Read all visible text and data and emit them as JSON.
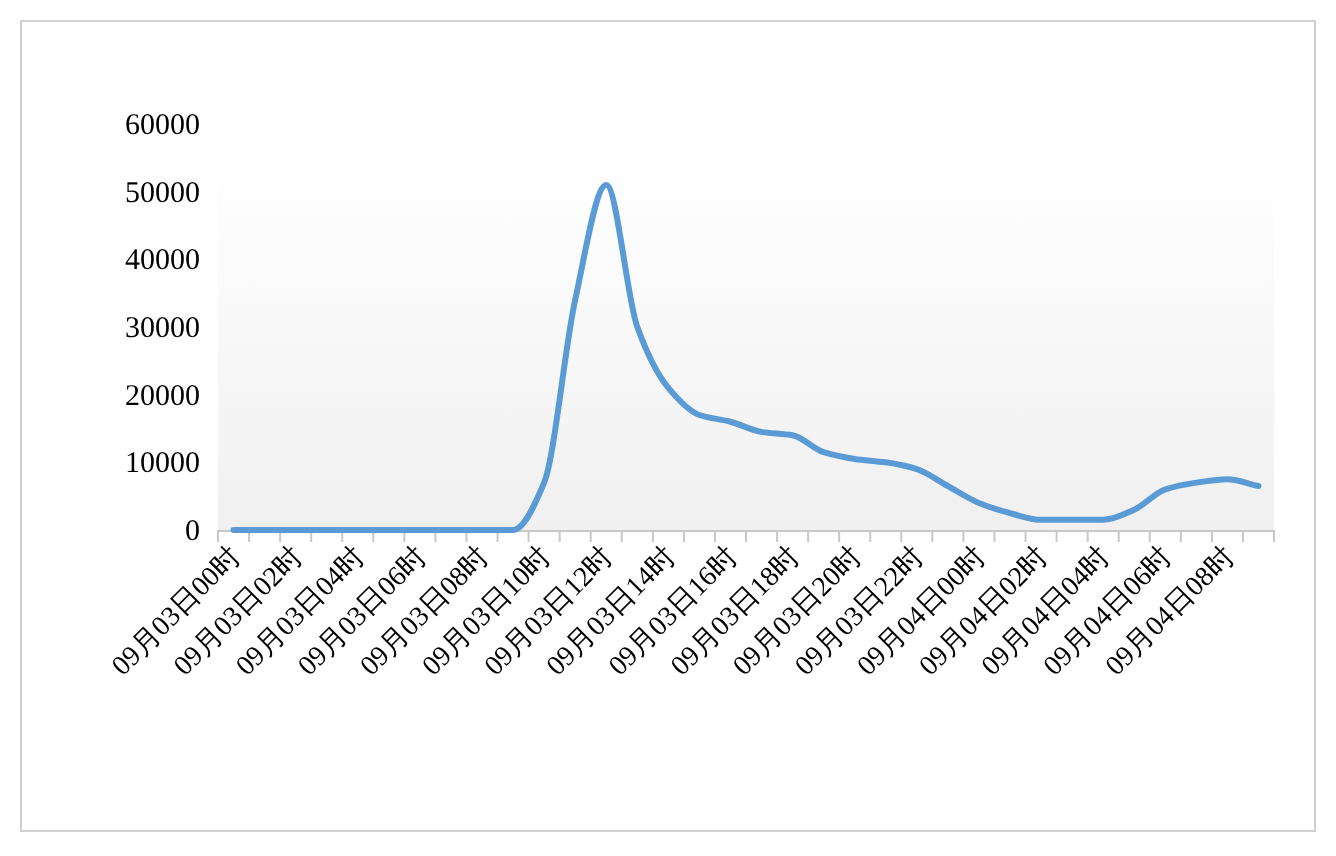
{
  "chart_data": {
    "type": "line",
    "categories": [
      "09月03日00时",
      null,
      "09月03日02时",
      null,
      "09月03日04时",
      null,
      "09月03日06时",
      null,
      "09月03日08时",
      null,
      "09月03日10时",
      null,
      "09月03日12时",
      null,
      "09月03日14时",
      null,
      "09月03日16时",
      null,
      "09月03日18时",
      null,
      "09月03日20时",
      null,
      "09月03日22时",
      null,
      "09月04日00时",
      null,
      "09月04日02时",
      null,
      "09月04日04时",
      null,
      "09月04日06时",
      null,
      "09月04日08时",
      null
    ],
    "series": [
      {
        "color": "#5b9bd5",
        "values": [
          0,
          0,
          0,
          0,
          0,
          0,
          0,
          0,
          0,
          0,
          7000,
          34000,
          51000,
          30000,
          21000,
          17000,
          16000,
          14500,
          14000,
          11500,
          10500,
          10000,
          9000,
          6500,
          4000,
          2500,
          1500,
          1500,
          1500,
          3000,
          6000,
          7000,
          7500,
          6500
        ]
      }
    ],
    "ylim": [
      0,
      60000
    ],
    "yticks": [
      0,
      10000,
      20000,
      30000,
      40000,
      50000,
      60000
    ],
    "line_style": "solid"
  }
}
